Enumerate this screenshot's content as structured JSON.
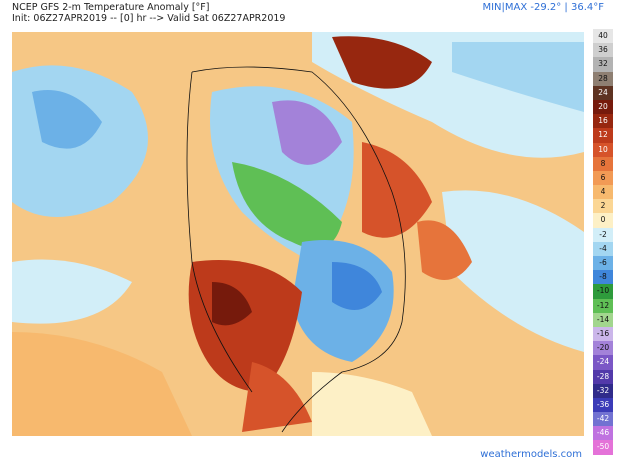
{
  "header": {
    "title": "NCEP GFS 2-m Temperature Anomaly [°F]",
    "subtitle": "Init: 06Z27APR2019 -- [0] hr --> Valid Sat 06Z27APR2019",
    "minmax": "MIN|MAX -29.2° | 36.4°F"
  },
  "legend": {
    "labels": [
      "40",
      "36",
      "32",
      "28",
      "24",
      "20",
      "16",
      "12",
      "10",
      "8",
      "6",
      "4",
      "2",
      "0",
      "-2",
      "-4",
      "-6",
      "-8",
      "-10",
      "-12",
      "-14",
      "-16",
      "-20",
      "-24",
      "-28",
      "-32",
      "-36",
      "-42",
      "-46",
      "-50"
    ],
    "colors": [
      "#e6e6e6",
      "#cfcfcf",
      "#b3b3b3",
      "#8e7f72",
      "#5e3322",
      "#761a0c",
      "#97270f",
      "#bd3a1b",
      "#d6532a",
      "#e6743b",
      "#f29a55",
      "#f7b96e",
      "#fbd694",
      "#fdf0c6",
      "#d2eef8",
      "#a3d6f1",
      "#6cb1e7",
      "#3f86db",
      "#2e9b3c",
      "#5fbf55",
      "#a2d68e",
      "#cbb6ea",
      "#a382d9",
      "#7b57c6",
      "#5239aa",
      "#302b8b",
      "#3b3bb8",
      "#7272d2",
      "#bf72e0",
      "#e472d8"
    ]
  },
  "footer": {
    "credit": "weathermodels.com"
  }
}
